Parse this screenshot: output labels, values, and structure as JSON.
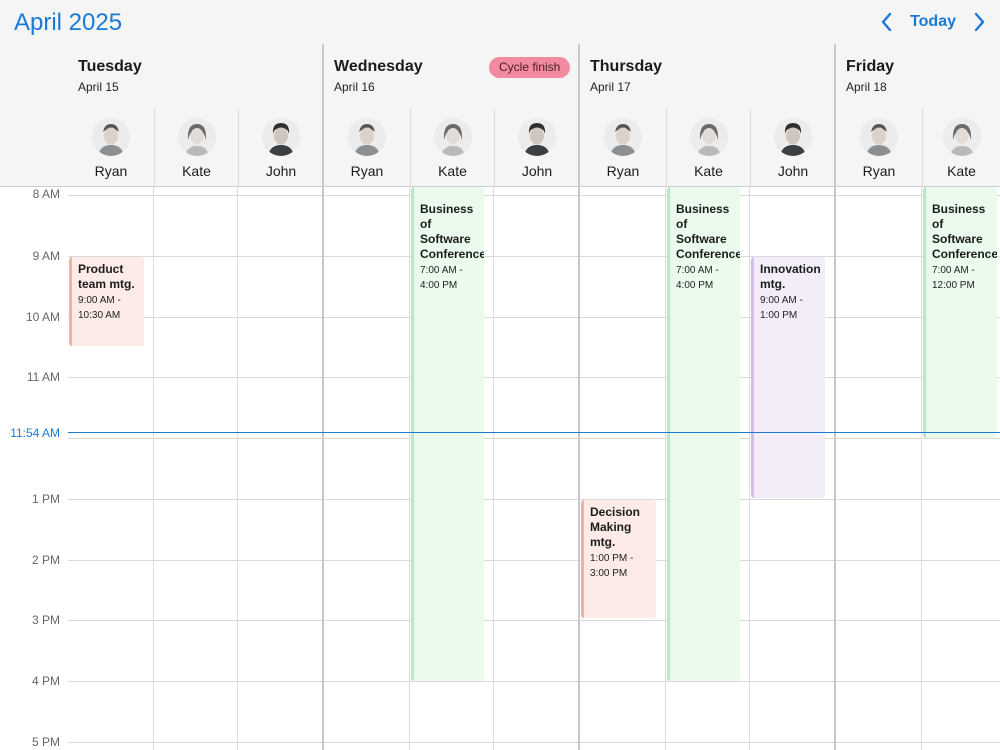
{
  "header": {
    "month_title": "April 2025",
    "today_label": "Today",
    "prev_icon": "chevron-left-icon",
    "next_icon": "chevron-right-icon"
  },
  "days": [
    {
      "name": "Tuesday",
      "date": "April 15",
      "badge": ""
    },
    {
      "name": "Wednesday",
      "date": "April 16",
      "badge": "Cycle finish"
    },
    {
      "name": "Thursday",
      "date": "April 17",
      "badge": ""
    },
    {
      "name": "Friday",
      "date": "April 18",
      "badge": ""
    }
  ],
  "resources": [
    "Ryan",
    "Kate",
    "John"
  ],
  "hours": [
    "8 AM",
    "9 AM",
    "10 AM",
    "11 AM",
    "1 PM",
    "2 PM",
    "3 PM",
    "4 PM",
    "5 PM"
  ],
  "now_label": "11:54 AM",
  "events": [
    {
      "title": "Product team mtg.",
      "time": "9:00 AM - 10:30 AM",
      "day": "Tuesday",
      "resource": "Ryan"
    },
    {
      "title": "Business of Software Conference",
      "time": "7:00 AM - 4:00 PM",
      "day": "Wednesday",
      "resource": "Kate"
    },
    {
      "title": "Business of Software Conference",
      "time": "7:00 AM - 4:00 PM",
      "day": "Thursday",
      "resource": "Kate"
    },
    {
      "title": "Innovation mtg.",
      "time": "9:00 AM - 1:00 PM",
      "day": "Thursday",
      "resource": "John"
    },
    {
      "title": "Decision Making mtg.",
      "time": "1:00 PM - 3:00 PM",
      "day": "Thursday",
      "resource": "Ryan"
    },
    {
      "title": "Business of Software Conference",
      "time": "7:00 AM - 12:00 PM",
      "day": "Friday",
      "resource": "Kate"
    }
  ],
  "colors": {
    "accent": "#1a7ad8",
    "badge": "#f28aa0",
    "event_red": "#fcebe7",
    "event_green": "#eafbee",
    "event_purple": "#f3ecf9"
  }
}
